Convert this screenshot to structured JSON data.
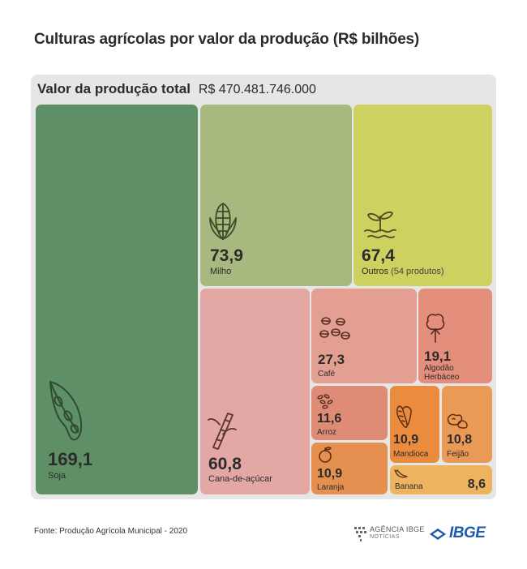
{
  "title": "Culturas agrícolas por valor da produção (R$ bilhões)",
  "total": {
    "label": "Valor da produção total",
    "value": "R$ 470.481.746.000"
  },
  "chart_data": {
    "type": "treemap",
    "title": "Culturas agrícolas por valor da produção (R$ bilhões)",
    "total_label": "Valor da produção total",
    "total_value": "R$ 470.481.746.000",
    "items": [
      {
        "name": "Soja",
        "value": 169.1,
        "value_label": "169,1",
        "color": "#5f8f65",
        "icon": "soybean-icon"
      },
      {
        "name": "Milho",
        "value": 73.9,
        "value_label": "73,9",
        "color": "#a7b97f",
        "icon": "corn-icon"
      },
      {
        "name": "Outros",
        "note": "(54 produtos)",
        "value": 67.4,
        "value_label": "67,4",
        "color": "#ccd160",
        "icon": "sprout-icon"
      },
      {
        "name": "Cana-de-açúcar",
        "value": 60.8,
        "value_label": "60,8",
        "color": "#e3a7a4",
        "icon": "sugarcane-icon"
      },
      {
        "name": "Café",
        "value": 27.3,
        "value_label": "27,3",
        "color": "#e39f91",
        "icon": "coffee-beans-icon"
      },
      {
        "name": "Algodão Herbáceo",
        "value": 19.1,
        "value_label": "19,1",
        "color": "#e48f7b",
        "icon": "cotton-icon"
      },
      {
        "name": "Arroz",
        "value": 11.6,
        "value_label": "11,6",
        "color": "#df8c77",
        "icon": "rice-icon"
      },
      {
        "name": "Mandioca",
        "value": 10.9,
        "value_label": "10,9",
        "color": "#ea8b3d",
        "icon": "cassava-icon"
      },
      {
        "name": "Feijão",
        "value": 10.8,
        "value_label": "10,8",
        "color": "#eb9a56",
        "icon": "beans-icon"
      },
      {
        "name": "Laranja",
        "value": 10.9,
        "value_label": "10,9",
        "color": "#e58f51",
        "icon": "orange-icon"
      },
      {
        "name": "Banana",
        "value": 8.6,
        "value_label": "8,6",
        "color": "#eeb35f",
        "icon": "banana-icon"
      }
    ]
  },
  "footer": {
    "source": "Fonte: Produção Agrícola Municipal - 2020"
  },
  "logos": {
    "agencia_line1": "AGÊNCIA IBGE",
    "agencia_line2": "NOTÍCIAS",
    "ibge": "IBGE"
  }
}
